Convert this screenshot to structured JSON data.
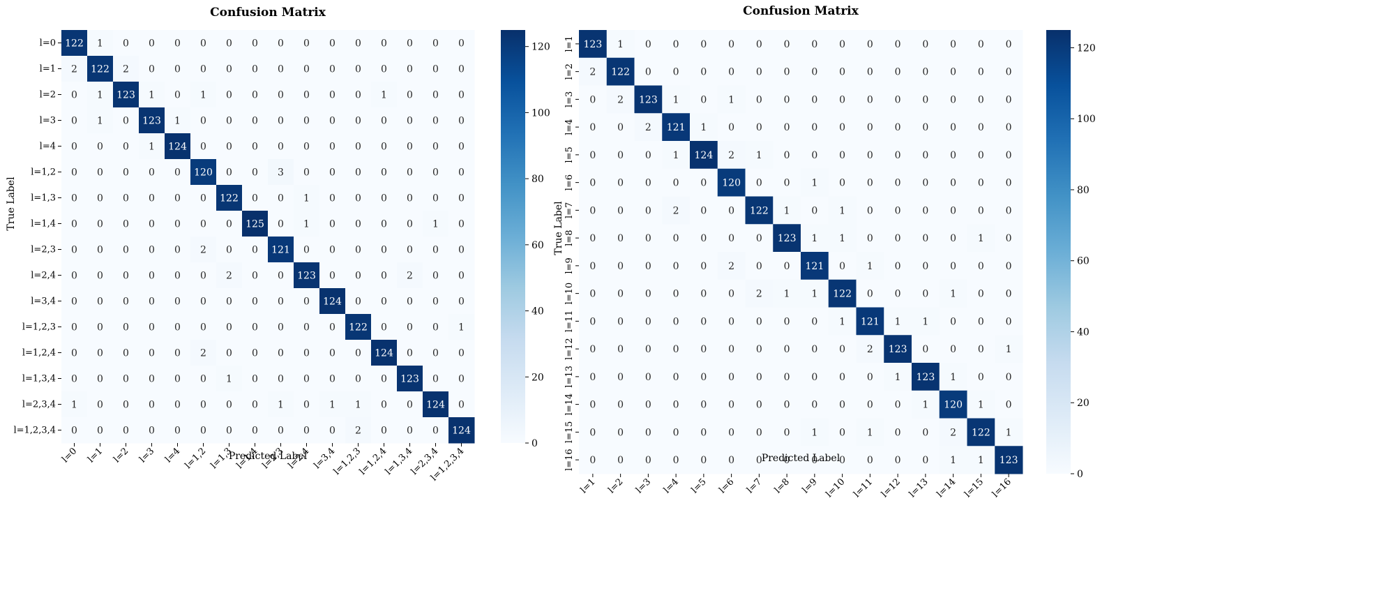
{
  "chart_data": [
    {
      "type": "heatmap",
      "title": "Confusion Matrix",
      "xlabel": "Predicted Label",
      "ylabel": "True Label",
      "labels": [
        "l=0",
        "l=1",
        "l=2",
        "l=3",
        "l=4",
        "l=1,2",
        "l=1,3",
        "l=1,4",
        "l=2,3",
        "l=2,4",
        "l=3,4",
        "l=1,2,3",
        "l=1,2,4",
        "l=1,3,4",
        "l=2,3,4",
        "l=1,2,3,4"
      ],
      "matrix": [
        [
          122,
          1,
          0,
          0,
          0,
          0,
          0,
          0,
          0,
          0,
          0,
          0,
          0,
          0,
          0,
          0
        ],
        [
          2,
          122,
          2,
          0,
          0,
          0,
          0,
          0,
          0,
          0,
          0,
          0,
          0,
          0,
          0,
          0
        ],
        [
          0,
          1,
          123,
          1,
          0,
          1,
          0,
          0,
          0,
          0,
          0,
          0,
          1,
          0,
          0,
          0
        ],
        [
          0,
          1,
          0,
          123,
          1,
          0,
          0,
          0,
          0,
          0,
          0,
          0,
          0,
          0,
          0,
          0
        ],
        [
          0,
          0,
          0,
          1,
          124,
          0,
          0,
          0,
          0,
          0,
          0,
          0,
          0,
          0,
          0,
          0
        ],
        [
          0,
          0,
          0,
          0,
          0,
          120,
          0,
          0,
          3,
          0,
          0,
          0,
          0,
          0,
          0,
          0
        ],
        [
          0,
          0,
          0,
          0,
          0,
          0,
          122,
          0,
          0,
          1,
          0,
          0,
          0,
          0,
          0,
          0
        ],
        [
          0,
          0,
          0,
          0,
          0,
          0,
          0,
          125,
          0,
          1,
          0,
          0,
          0,
          0,
          1,
          0
        ],
        [
          0,
          0,
          0,
          0,
          0,
          2,
          0,
          0,
          121,
          0,
          0,
          0,
          0,
          0,
          0,
          0
        ],
        [
          0,
          0,
          0,
          0,
          0,
          0,
          2,
          0,
          0,
          123,
          0,
          0,
          0,
          2,
          0,
          0
        ],
        [
          0,
          0,
          0,
          0,
          0,
          0,
          0,
          0,
          0,
          0,
          124,
          0,
          0,
          0,
          0,
          0
        ],
        [
          0,
          0,
          0,
          0,
          0,
          0,
          0,
          0,
          0,
          0,
          0,
          122,
          0,
          0,
          0,
          1
        ],
        [
          0,
          0,
          0,
          0,
          0,
          2,
          0,
          0,
          0,
          0,
          0,
          0,
          124,
          0,
          0,
          0
        ],
        [
          0,
          0,
          0,
          0,
          0,
          0,
          1,
          0,
          0,
          0,
          0,
          0,
          0,
          123,
          0,
          0
        ],
        [
          1,
          0,
          0,
          0,
          0,
          0,
          0,
          0,
          1,
          0,
          1,
          1,
          0,
          0,
          124,
          0
        ],
        [
          0,
          0,
          0,
          0,
          0,
          0,
          0,
          0,
          0,
          0,
          0,
          2,
          0,
          0,
          0,
          124
        ]
      ],
      "colorbar": {
        "range": [
          0,
          125
        ],
        "ticks": [
          0,
          20,
          40,
          60,
          80,
          100,
          120
        ]
      },
      "ytick_rotation": 0
    },
    {
      "type": "heatmap",
      "title": "Confusion Matrix",
      "xlabel": "Predicted Label",
      "ylabel": "True Label",
      "labels": [
        "l=1",
        "l=2",
        "l=3",
        "l=4",
        "l=5",
        "l=6",
        "l=7",
        "l=8",
        "l=9",
        "l=10",
        "l=11",
        "l=12",
        "l=13",
        "l=14",
        "l=15",
        "l=16"
      ],
      "matrix": [
        [
          123,
          1,
          0,
          0,
          0,
          0,
          0,
          0,
          0,
          0,
          0,
          0,
          0,
          0,
          0,
          0
        ],
        [
          2,
          122,
          0,
          0,
          0,
          0,
          0,
          0,
          0,
          0,
          0,
          0,
          0,
          0,
          0,
          0
        ],
        [
          0,
          2,
          123,
          1,
          0,
          1,
          0,
          0,
          0,
          0,
          0,
          0,
          0,
          0,
          0,
          0
        ],
        [
          0,
          0,
          2,
          121,
          1,
          0,
          0,
          0,
          0,
          0,
          0,
          0,
          0,
          0,
          0,
          0
        ],
        [
          0,
          0,
          0,
          1,
          124,
          2,
          1,
          0,
          0,
          0,
          0,
          0,
          0,
          0,
          0,
          0
        ],
        [
          0,
          0,
          0,
          0,
          0,
          120,
          0,
          0,
          1,
          0,
          0,
          0,
          0,
          0,
          0,
          0
        ],
        [
          0,
          0,
          0,
          2,
          0,
          0,
          122,
          1,
          0,
          1,
          0,
          0,
          0,
          0,
          0,
          0
        ],
        [
          0,
          0,
          0,
          0,
          0,
          0,
          0,
          123,
          1,
          1,
          0,
          0,
          0,
          0,
          1,
          0
        ],
        [
          0,
          0,
          0,
          0,
          0,
          2,
          0,
          0,
          121,
          0,
          1,
          0,
          0,
          0,
          0,
          0
        ],
        [
          0,
          0,
          0,
          0,
          0,
          0,
          2,
          1,
          1,
          122,
          0,
          0,
          0,
          1,
          0,
          0
        ],
        [
          0,
          0,
          0,
          0,
          0,
          0,
          0,
          0,
          0,
          1,
          121,
          1,
          1,
          0,
          0,
          0
        ],
        [
          0,
          0,
          0,
          0,
          0,
          0,
          0,
          0,
          0,
          0,
          2,
          123,
          0,
          0,
          0,
          1
        ],
        [
          0,
          0,
          0,
          0,
          0,
          0,
          0,
          0,
          0,
          0,
          0,
          1,
          123,
          1,
          0,
          0
        ],
        [
          0,
          0,
          0,
          0,
          0,
          0,
          0,
          0,
          0,
          0,
          0,
          0,
          1,
          120,
          1,
          0
        ],
        [
          0,
          0,
          0,
          0,
          0,
          0,
          0,
          0,
          1,
          0,
          1,
          0,
          0,
          2,
          122,
          1
        ],
        [
          0,
          0,
          0,
          0,
          0,
          0,
          0,
          0,
          0,
          0,
          0,
          0,
          0,
          1,
          1,
          123
        ]
      ],
      "colorbar": {
        "range": [
          0,
          125
        ],
        "ticks": [
          0,
          20,
          40,
          60,
          80,
          100,
          120
        ]
      },
      "ytick_rotation": -90
    }
  ]
}
